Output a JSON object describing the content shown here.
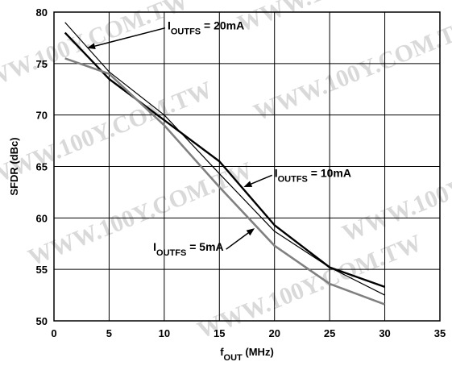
{
  "chart_data": {
    "type": "line",
    "xlabel": {
      "main": "f",
      "sub": "OUT",
      "rest": " (MHz)"
    },
    "ylabel": "SFDR (dBc)",
    "xlim": [
      0,
      35
    ],
    "ylim": [
      50,
      80
    ],
    "xticks": [
      0,
      5,
      10,
      15,
      20,
      25,
      30,
      35
    ],
    "yticks": [
      50,
      55,
      60,
      65,
      70,
      75,
      80
    ],
    "grid": true,
    "watermark": "WWW.100Y.COM.TW",
    "series": [
      {
        "key": "20mA",
        "color": "#000000",
        "x": [
          1,
          5,
          10,
          15,
          20,
          25,
          30
        ],
        "y": [
          79.0,
          74.2,
          70.0,
          64.3,
          58.7,
          55.2,
          52.5
        ]
      },
      {
        "key": "10mA",
        "color": "#000000",
        "x": [
          1,
          5,
          10,
          15,
          20,
          25,
          30
        ],
        "y": [
          78.0,
          73.5,
          69.5,
          65.5,
          59.3,
          55.2,
          53.3
        ]
      },
      {
        "key": "5mA",
        "color": "#808080",
        "x": [
          1,
          5,
          10,
          15,
          20,
          25,
          30
        ],
        "y": [
          75.5,
          74.0,
          69.0,
          63.0,
          57.3,
          53.6,
          51.6
        ]
      }
    ],
    "annotations": [
      {
        "series": "20mA",
        "main": "I",
        "sub": "OUTFS",
        "rest": " = 20mA",
        "text_x": 10.3,
        "text_y": 78.3,
        "arrow_x": 3.0,
        "arrow_y": 76.5
      },
      {
        "series": "10mA",
        "main": "I",
        "sub": "OUTFS",
        "rest": " = 10mA",
        "text_x": 20.0,
        "text_y": 64.0,
        "arrow_x": 17.2,
        "arrow_y": 63.0
      },
      {
        "series": "5mA",
        "main": "I",
        "sub": "OUTFS",
        "rest": " = 5mA",
        "text_x": 9.0,
        "text_y": 56.8,
        "arrow_x": 18.2,
        "arrow_y": 59.0
      }
    ]
  }
}
